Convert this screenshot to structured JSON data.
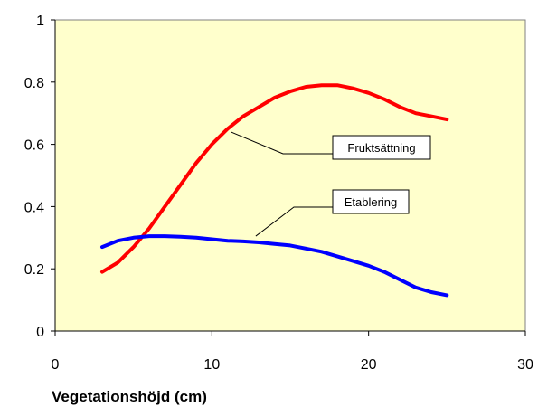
{
  "chart_data": {
    "type": "line",
    "title": "",
    "xlabel": "Vegetationshöjd (cm)",
    "ylabel": "",
    "xlim": [
      0,
      30
    ],
    "ylim": [
      0,
      1
    ],
    "x_ticks": [
      0,
      10,
      20,
      30
    ],
    "y_ticks": [
      0,
      0.2,
      0.4,
      0.6,
      0.8,
      1
    ],
    "x_tick_labels": [
      "0",
      "10",
      "20",
      "30"
    ],
    "y_tick_labels": [
      "0",
      "0.2",
      "0.4",
      "0.6",
      "0.8",
      "1"
    ],
    "plot_background": "#FFFFCC",
    "grid": false,
    "legend": "callout labels",
    "series": [
      {
        "name": "Fruktsättning",
        "color": "#FF0000",
        "x": [
          3,
          4,
          5,
          6,
          7,
          8,
          9,
          10,
          11,
          12,
          13,
          14,
          15,
          16,
          17,
          18,
          19,
          20,
          21,
          22,
          23,
          24,
          25
        ],
        "y": [
          0.19,
          0.22,
          0.27,
          0.33,
          0.4,
          0.47,
          0.54,
          0.6,
          0.65,
          0.69,
          0.72,
          0.75,
          0.77,
          0.785,
          0.79,
          0.79,
          0.78,
          0.765,
          0.745,
          0.72,
          0.7,
          0.69,
          0.68
        ]
      },
      {
        "name": "Etablering",
        "color": "#0000FF",
        "x": [
          3,
          4,
          5,
          6,
          7,
          8,
          9,
          10,
          11,
          12,
          13,
          14,
          15,
          16,
          17,
          18,
          19,
          20,
          21,
          22,
          23,
          24,
          25
        ],
        "y": [
          0.27,
          0.29,
          0.3,
          0.305,
          0.305,
          0.303,
          0.3,
          0.295,
          0.29,
          0.288,
          0.285,
          0.28,
          0.275,
          0.265,
          0.255,
          0.24,
          0.225,
          0.21,
          0.19,
          0.165,
          0.14,
          0.125,
          0.115
        ]
      }
    ],
    "annotations": [
      {
        "text": "Fruktsättning",
        "series": "Fruktsättning",
        "point_x": 11.2,
        "point_y": 0.64
      },
      {
        "text": "Etablering",
        "series": "Etablering",
        "point_x": 12.8,
        "point_y": 0.305
      }
    ]
  }
}
